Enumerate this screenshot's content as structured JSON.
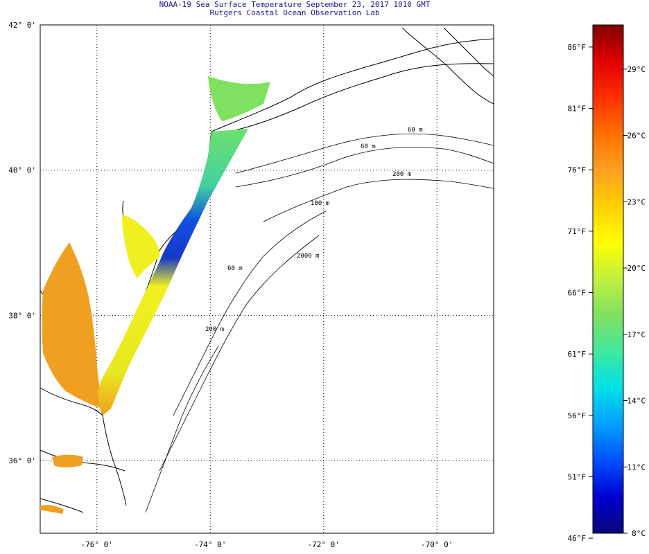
{
  "header": {
    "title": "NOAA-19 Sea Surface Temperature September 23, 2017 1010 GMT",
    "subtitle": "Rutgers Coastal Ocean Observation Lab"
  },
  "axes": {
    "lat_labels": [
      "42° 0'",
      "40° 0'",
      "38° 0'",
      "36° 0'"
    ],
    "lon_labels": [
      "-76° 0'",
      "-74° 0'",
      "-72° 0'",
      "-70° 0'"
    ]
  },
  "contours": {
    "labels": [
      "60 m",
      "60 m",
      "200 m",
      "100 m",
      "2000 m",
      "60 m",
      "200 m"
    ]
  },
  "colorbar": {
    "f_labels": [
      "86°F",
      "81°F",
      "76°F",
      "71°F",
      "66°F",
      "61°F",
      "56°F",
      "51°F",
      "46°F"
    ],
    "c_labels": [
      "29°C",
      "26°C",
      "23°C",
      "20°C",
      "17°C",
      "14°C",
      "11°C",
      "8°C"
    ],
    "min_c": 8,
    "max_c": 31,
    "colors": [
      "#08087a",
      "#0000d0",
      "#0050ff",
      "#00a0ff",
      "#00e0e8",
      "#40e8a0",
      "#80e060",
      "#c0f040",
      "#ffff00",
      "#ffd000",
      "#ffa020",
      "#ff7000",
      "#ff3000",
      "#e00000",
      "#800000"
    ]
  },
  "chart_data": {
    "type": "heatmap",
    "title": "NOAA-19 Sea Surface Temperature September 23, 2017 1010 GMT",
    "subtitle": "Rutgers Coastal Ocean Observation Lab",
    "x_range_deg": [
      -77,
      -69
    ],
    "y_range_deg": [
      35,
      42
    ],
    "colorbar_range_C": [
      8,
      31
    ],
    "colorbar_range_F": [
      46,
      88
    ]
  }
}
